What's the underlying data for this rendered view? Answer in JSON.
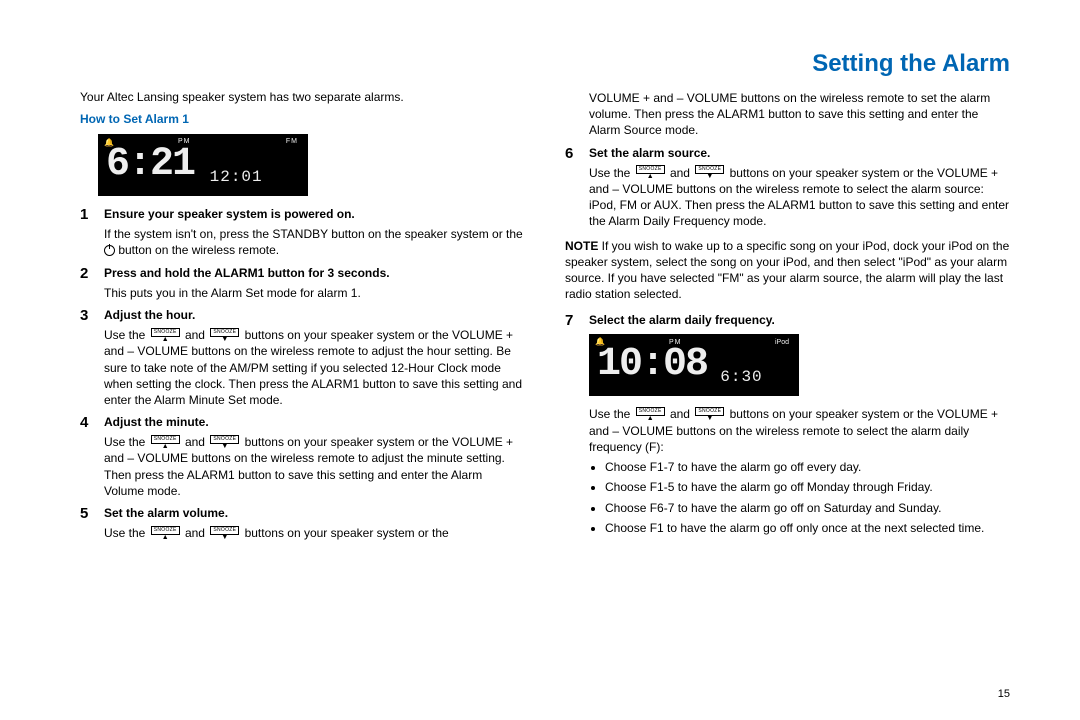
{
  "title": "Setting the Alarm",
  "intro": "Your Altec Lansing speaker system has two separate alarms.",
  "subhead": "How to Set Alarm 1",
  "display1": {
    "big": "6:21",
    "small": "12:01",
    "pm": "PM",
    "fm": "FM",
    "bell": "🔔"
  },
  "display2": {
    "big": "10:08",
    "small": "6:30",
    "pm": "PM",
    "ipod": "iPod",
    "bell": "🔔"
  },
  "snooze_label": "SNOOZE",
  "steps": {
    "s1": {
      "num": "1",
      "title": "Ensure your speaker system is powered on.",
      "body_a": "If the system isn't on, press the STANDBY button on the speaker system or the ",
      "body_b": " button on the wireless remote."
    },
    "s2": {
      "num": "2",
      "title": "Press and hold the ALARM1 button for 3 seconds.",
      "body": "This puts you in the Alarm Set mode for alarm 1."
    },
    "s3": {
      "num": "3",
      "title": "Adjust the hour.",
      "body_a": "Use the ",
      "body_b": " and ",
      "body_c": " buttons on your speaker system or the VOLUME + and – VOLUME buttons on the wireless remote to adjust the hour setting. Be sure to take note of the AM/PM setting if you selected 12-Hour Clock mode when setting the clock. Then press the ALARM1 button to save this setting and enter the Alarm Minute Set mode."
    },
    "s4": {
      "num": "4",
      "title": "Adjust the minute.",
      "body_a": "Use the ",
      "body_b": " and ",
      "body_c": " buttons on your speaker system or the VOLUME + and – VOLUME buttons on the wireless remote to adjust the minute setting. Then press the ALARM1 button to save this setting and enter the Alarm Volume mode."
    },
    "s5": {
      "num": "5",
      "title": "Set the alarm volume.",
      "body_a": "Use the ",
      "body_b": " and ",
      "body_c": " buttons on your speaker system or the ",
      "cont": "VOLUME + and – VOLUME buttons on the wireless remote to set the alarm volume. Then press the ALARM1 button to save this setting and enter the Alarm Source mode."
    },
    "s6": {
      "num": "6",
      "title": "Set the alarm source.",
      "body_a": "Use the ",
      "body_b": " and ",
      "body_c": " buttons on your speaker system or the VOLUME + and – VOLUME buttons on the wireless remote to select the alarm source: iPod, FM or AUX. Then press the ALARM1 button to save this setting and enter the Alarm Daily Frequency mode."
    },
    "s7": {
      "num": "7",
      "title": "Select the alarm daily frequency.",
      "body_a": "Use the ",
      "body_b": " and ",
      "body_c": " buttons on your speaker system or the VOLUME + and – VOLUME buttons on the wireless remote to select the alarm daily frequency (F):"
    }
  },
  "note_label": "NOTE",
  "note_body": " If you wish to wake up to a specific song on your iPod, dock your iPod on the speaker system, select the song on your iPod, and then select \"iPod\" as your alarm source. If you have selected \"FM\" as your alarm source, the alarm will play the last radio station selected.",
  "bullets": [
    "Choose F1-7 to have the alarm go off every day.",
    "Choose F1-5 to have the alarm go off Monday through Friday.",
    "Choose F6-7 to have the alarm go off on Saturday and Sunday.",
    "Choose F1 to have the alarm go off only once at the next selected time."
  ],
  "page_number": "15",
  "colors": {
    "accent": "#0066b3",
    "text": "#000000",
    "display_bg": "#000000",
    "display_fg": "#eeeeee"
  }
}
